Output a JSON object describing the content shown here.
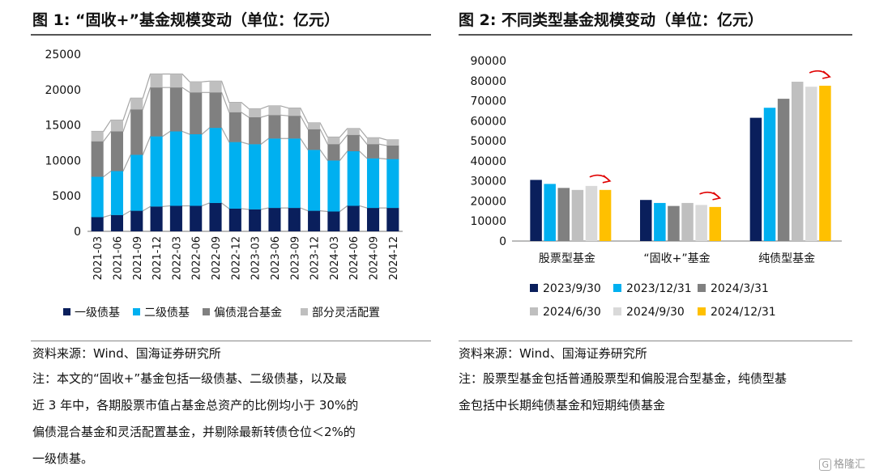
{
  "chart_data": [
    {
      "type": "bar",
      "stacked": true,
      "title": "图 1:  “固收+”基金规模变动（单位：亿元）",
      "ylim": [
        0,
        25000
      ],
      "yticks": [
        0,
        5000,
        10000,
        15000,
        20000,
        25000
      ],
      "categories": [
        "2021-03",
        "2021-06",
        "2021-09",
        "2021-12",
        "2022-03",
        "2022-06",
        "2022-09",
        "2022-12",
        "2023-03",
        "2023-06",
        "2023-09",
        "2023-12",
        "2024-03",
        "2024-06",
        "2024-09",
        "2024-12"
      ],
      "series": [
        {
          "name": "一级债基",
          "color": "#0a1f5c",
          "values": [
            2000,
            2300,
            2900,
            3500,
            3600,
            3600,
            4000,
            3200,
            3100,
            3300,
            3300,
            2900,
            2800,
            3600,
            3300,
            3300
          ]
        },
        {
          "name": "二级债基",
          "color": "#00b0f0",
          "values": [
            5700,
            6200,
            7900,
            9900,
            10500,
            10100,
            10600,
            9400,
            9200,
            9800,
            9800,
            8600,
            7200,
            7700,
            7000,
            6900
          ]
        },
        {
          "name": "偏债混合基金",
          "color": "#808080",
          "values": [
            5000,
            5600,
            6400,
            6900,
            6200,
            5900,
            5000,
            4200,
            3800,
            3300,
            3200,
            2900,
            2300,
            2300,
            2000,
            1900
          ]
        },
        {
          "name": "部分灵活配置",
          "color": "#bfbfbf",
          "values": [
            1400,
            1600,
            1600,
            1900,
            1900,
            1500,
            1600,
            1400,
            1200,
            1300,
            1100,
            900,
            1000,
            900,
            900,
            800
          ]
        }
      ],
      "legend": [
        "一级债基",
        "二级债基",
        "偏债混合基金",
        "部分灵活配置"
      ],
      "legend_position": "bottom"
    },
    {
      "type": "bar",
      "stacked": false,
      "title": "图 2:  不同类型基金规模变动（单位：亿元）",
      "ylim": [
        0,
        90000
      ],
      "yticks": [
        0,
        10000,
        20000,
        30000,
        40000,
        50000,
        60000,
        70000,
        80000,
        90000
      ],
      "categories": [
        "股票型基金",
        "“固收+”基金",
        "纯债型基金"
      ],
      "series": [
        {
          "name": "2023/9/30",
          "color": "#0a1f5c",
          "values": [
            30500,
            20500,
            61500
          ]
        },
        {
          "name": "2023/12/31",
          "color": "#00b0f0",
          "values": [
            28500,
            19000,
            66500
          ]
        },
        {
          "name": "2024/3/31",
          "color": "#808080",
          "values": [
            26500,
            17500,
            71000
          ]
        },
        {
          "name": "2024/6/30",
          "color": "#bfbfbf",
          "values": [
            25500,
            19000,
            79500
          ]
        },
        {
          "name": "2024/9/30",
          "color": "#d9d9d9",
          "values": [
            27500,
            18000,
            77000
          ]
        },
        {
          "name": "2024/12/31",
          "color": "#ffc000",
          "values": [
            25500,
            17000,
            77500
          ]
        }
      ],
      "annotations": [
        "red arrow over latest bar of each group"
      ],
      "legend_position": "bottom"
    }
  ],
  "left": {
    "title": "图 1:  “固收+”基金规模变动（单位：亿元）",
    "source": "资料来源：Wind、国海证券研究所",
    "note_lines": [
      "注：本文的“固收+”基金包括一级债基、二级债基，以及最",
      "近 3 年中，各期股票市值占基金总资产的比例均小于 30%的",
      "偏债混合基金和灵活配置基金，并剔除最新转债仓位＜2%的",
      "一级债基。"
    ]
  },
  "right": {
    "title": "图 2:  不同类型基金规模变动（单位：亿元）",
    "source": "资料来源：Wind、国海证券研究所",
    "note_lines": [
      "注：股票型基金包括普通股票型和偏股混合型基金，纯债型基",
      "金包括中长期纯债基金和短期纯债基金"
    ]
  },
  "watermark": {
    "box": "G",
    "text": "格隆汇"
  }
}
